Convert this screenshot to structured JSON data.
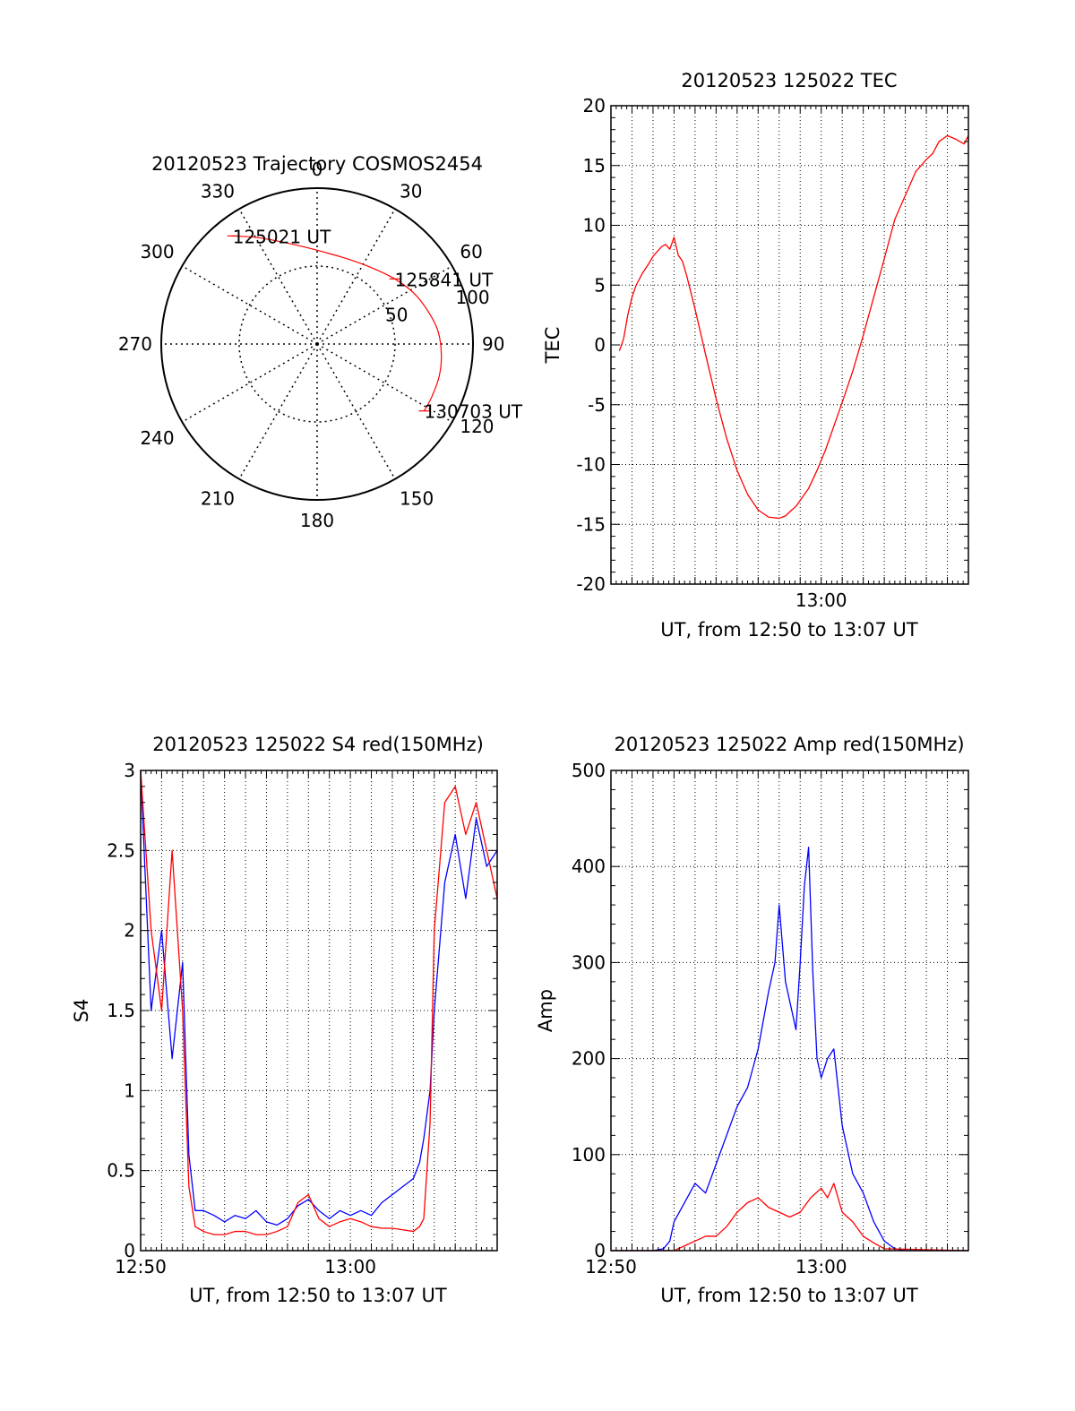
{
  "colors": {
    "red": "#ff0000",
    "blue": "#0000ff",
    "axis": "#000000",
    "grid": "#000000"
  },
  "chart_data": [
    {
      "id": "polar",
      "type": "polar",
      "title": "20120523 Trajectory COSMOS2454",
      "azimuth_labels": [
        "0",
        "30",
        "60",
        "90",
        "120",
        "150",
        "180",
        "210",
        "240",
        "270",
        "300",
        "330"
      ],
      "radial_rings": [
        50,
        100
      ],
      "radial_labels": [
        "50",
        "100"
      ],
      "grid": true,
      "trajectory": {
        "points": [
          {
            "az": 322,
            "r": 88
          },
          {
            "az": 330,
            "r": 79
          },
          {
            "az": 340,
            "r": 70
          },
          {
            "az": 352,
            "r": 63
          },
          {
            "az": 5,
            "r": 59
          },
          {
            "az": 20,
            "r": 58
          },
          {
            "az": 35,
            "r": 60
          },
          {
            "az": 50,
            "r": 65
          },
          {
            "az": 62,
            "r": 70
          },
          {
            "az": 73,
            "r": 74
          },
          {
            "az": 84,
            "r": 78
          },
          {
            "az": 95,
            "r": 80
          },
          {
            "az": 105,
            "r": 81
          },
          {
            "az": 115,
            "r": 81
          },
          {
            "az": 122,
            "r": 81
          }
        ],
        "annotations": [
          {
            "text": "125021 UT",
            "point": 0
          },
          {
            "text": "125841 UT",
            "point": 7
          },
          {
            "text": "130703 UT",
            "point": 14
          }
        ]
      }
    },
    {
      "id": "tec",
      "type": "line",
      "title": "20120523 125022 TEC",
      "xlabel": "UT, from 12:50 to 13:07 UT",
      "ylabel": "TEC",
      "xlim": [
        0,
        17
      ],
      "ylim": [
        -20,
        20
      ],
      "yticks": [
        -20,
        -15,
        -10,
        -5,
        0,
        5,
        10,
        15,
        20
      ],
      "xticks": [
        {
          "value": 10,
          "label": "13:00"
        }
      ],
      "grid": true,
      "series": [
        {
          "color": "#ff0000",
          "x": [
            0.4,
            0.6,
            0.8,
            1.0,
            1.2,
            1.5,
            1.8,
            2.0,
            2.2,
            2.4,
            2.6,
            2.8,
            3.0,
            3.2,
            3.4,
            3.6,
            4.0,
            4.5,
            5.0,
            5.5,
            6.0,
            6.5,
            7.0,
            7.5,
            8.0,
            8.3,
            8.6,
            8.8,
            9.0,
            9.4,
            9.8,
            10.2,
            10.6,
            11.0,
            11.5,
            12.0,
            12.5,
            13.0,
            13.5,
            14.0,
            14.5,
            15.0,
            15.3,
            15.6,
            16.0,
            16.4,
            16.8,
            17.0
          ],
          "y": [
            -0.5,
            0.5,
            2.5,
            4.0,
            5.0,
            6.0,
            6.8,
            7.4,
            7.8,
            8.2,
            8.4,
            8.0,
            9.0,
            7.5,
            7.0,
            5.8,
            3.0,
            -0.8,
            -4.5,
            -7.8,
            -10.5,
            -12.5,
            -13.8,
            -14.4,
            -14.5,
            -14.3,
            -13.8,
            -13.5,
            -13.0,
            -12.0,
            -10.5,
            -8.8,
            -6.8,
            -4.8,
            -2.2,
            0.8,
            4.0,
            7.2,
            10.5,
            12.5,
            14.5,
            15.5,
            16.0,
            17.0,
            17.5,
            17.2,
            16.8,
            17.5
          ]
        }
      ]
    },
    {
      "id": "s4",
      "type": "line",
      "title": "20120523 125022 S4 red(150MHz)",
      "xlabel": "UT, from 12:50 to 13:07 UT",
      "ylabel": "S4",
      "xlim": [
        0,
        17
      ],
      "ylim": [
        0,
        3
      ],
      "yticks": [
        0,
        0.5,
        1,
        1.5,
        2,
        2.5,
        3
      ],
      "ytick_labels": [
        "0",
        "0.5",
        "1",
        "1.5",
        "2",
        "2.5",
        "3"
      ],
      "xticks": [
        {
          "value": 0,
          "label": "12:50"
        },
        {
          "value": 10,
          "label": "13:00"
        }
      ],
      "grid": true,
      "series": [
        {
          "color": "#0000ff",
          "x": [
            0.0,
            0.5,
            1.0,
            1.5,
            2.0,
            2.3,
            2.6,
            3.0,
            3.5,
            4.0,
            4.5,
            5.0,
            5.5,
            6.0,
            6.5,
            7.0,
            7.5,
            8.0,
            8.5,
            9.0,
            9.5,
            10.0,
            10.5,
            11.0,
            11.5,
            12.0,
            12.5,
            13.0,
            13.3,
            13.5,
            13.8,
            14.0,
            14.5,
            15.0,
            15.5,
            16.0,
            16.5,
            17.0
          ],
          "y": [
            3.0,
            1.5,
            2.0,
            1.2,
            1.8,
            0.6,
            0.25,
            0.25,
            0.22,
            0.18,
            0.22,
            0.2,
            0.25,
            0.18,
            0.16,
            0.2,
            0.28,
            0.32,
            0.25,
            0.2,
            0.25,
            0.22,
            0.25,
            0.22,
            0.3,
            0.35,
            0.4,
            0.45,
            0.55,
            0.7,
            1.0,
            1.5,
            2.3,
            2.6,
            2.2,
            2.7,
            2.4,
            2.5
          ]
        },
        {
          "color": "#ff0000",
          "x": [
            0.0,
            0.5,
            1.0,
            1.5,
            2.0,
            2.3,
            2.6,
            3.0,
            3.5,
            4.0,
            4.5,
            5.0,
            5.5,
            6.0,
            6.5,
            7.0,
            7.5,
            8.0,
            8.5,
            9.0,
            9.5,
            10.0,
            10.5,
            11.0,
            11.5,
            12.0,
            12.5,
            13.0,
            13.3,
            13.5,
            13.8,
            14.0,
            14.5,
            15.0,
            15.5,
            16.0,
            16.5,
            17.0
          ],
          "y": [
            3.0,
            2.0,
            1.5,
            2.5,
            1.5,
            0.4,
            0.15,
            0.12,
            0.1,
            0.1,
            0.12,
            0.12,
            0.1,
            0.1,
            0.12,
            0.15,
            0.3,
            0.35,
            0.2,
            0.15,
            0.18,
            0.2,
            0.18,
            0.15,
            0.14,
            0.14,
            0.13,
            0.12,
            0.15,
            0.2,
            0.8,
            2.0,
            2.8,
            2.9,
            2.6,
            2.8,
            2.5,
            2.2
          ]
        }
      ]
    },
    {
      "id": "amp",
      "type": "line",
      "title": "20120523 125022 Amp red(150MHz)",
      "xlabel": "UT, from 12:50 to 13:07 UT",
      "ylabel": "Amp",
      "xlim": [
        0,
        17
      ],
      "ylim": [
        0,
        500
      ],
      "yticks": [
        0,
        100,
        200,
        300,
        400,
        500
      ],
      "xticks": [
        {
          "value": 0,
          "label": "12:50"
        },
        {
          "value": 10,
          "label": "13:00"
        }
      ],
      "grid": true,
      "series": [
        {
          "color": "#0000ff",
          "x": [
            0.0,
            2.0,
            2.5,
            2.8,
            3.0,
            3.5,
            4.0,
            4.5,
            5.0,
            5.5,
            6.0,
            6.5,
            7.0,
            7.5,
            7.8,
            8.0,
            8.3,
            8.6,
            8.8,
            9.0,
            9.2,
            9.4,
            9.6,
            9.8,
            10.0,
            10.3,
            10.6,
            11.0,
            11.5,
            12.0,
            12.5,
            13.0,
            13.5,
            14.0,
            17.0
          ],
          "y": [
            0,
            0,
            2,
            10,
            30,
            50,
            70,
            60,
            90,
            120,
            150,
            170,
            210,
            270,
            300,
            360,
            280,
            250,
            230,
            300,
            380,
            420,
            290,
            200,
            180,
            200,
            210,
            130,
            80,
            60,
            30,
            10,
            2,
            0,
            0
          ]
        },
        {
          "color": "#ff0000",
          "x": [
            0.0,
            3.0,
            3.5,
            4.0,
            4.5,
            5.0,
            5.5,
            6.0,
            6.5,
            7.0,
            7.5,
            8.0,
            8.5,
            9.0,
            9.5,
            10.0,
            10.3,
            10.6,
            11.0,
            11.5,
            12.0,
            12.5,
            13.0,
            17.0
          ],
          "y": [
            0,
            0,
            5,
            10,
            15,
            15,
            25,
            40,
            50,
            55,
            45,
            40,
            35,
            40,
            55,
            65,
            55,
            70,
            40,
            30,
            15,
            8,
            2,
            0
          ]
        }
      ]
    }
  ]
}
